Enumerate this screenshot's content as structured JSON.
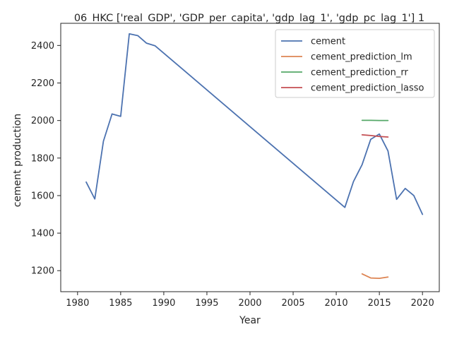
{
  "chart_data": {
    "type": "line",
    "title": "06_HKC ['real_GDP', 'GDP_per_capita', 'gdp_lag_1', 'gdp_pc_lag_1'] 1",
    "xlabel": "Year",
    "ylabel": "cement production",
    "xlim": [
      1978.05,
      2021.95
    ],
    "ylim": [
      1088,
      2518
    ],
    "xticks": [
      1980,
      1985,
      1990,
      1995,
      2000,
      2005,
      2010,
      2015,
      2020
    ],
    "yticks": [
      1200,
      1400,
      1600,
      1800,
      2000,
      2200,
      2400
    ],
    "grid": false,
    "legend_position": "top-right",
    "series": [
      {
        "name": "cement",
        "color": "#4c72b0",
        "x": [
          1981,
          1982,
          1983,
          1984,
          1985,
          1986,
          1987,
          1988,
          1989,
          2011,
          2012,
          2013,
          2014,
          2015,
          2016,
          2017,
          2018,
          2019,
          2020
        ],
        "y": [
          1672,
          1582,
          1890,
          2035,
          2022,
          2462,
          2452,
          2412,
          2398,
          1537,
          1675,
          1765,
          1900,
          1928,
          1838,
          1580,
          1638,
          1600,
          1500
        ]
      },
      {
        "name": "cement_prediction_lm",
        "color": "#dd8452",
        "x": [
          2013,
          2014,
          2015,
          2016
        ],
        "y": [
          1183,
          1161,
          1159,
          1166
        ]
      },
      {
        "name": "cement_prediction_rr",
        "color": "#55a868",
        "x": [
          2013,
          2014,
          2015,
          2016
        ],
        "y": [
          2001,
          2001,
          2000,
          2000
        ]
      },
      {
        "name": "cement_prediction_lasso",
        "color": "#c44e52",
        "x": [
          2013,
          2014,
          2015,
          2016
        ],
        "y": [
          1924,
          1920,
          1915,
          1912
        ]
      }
    ]
  }
}
